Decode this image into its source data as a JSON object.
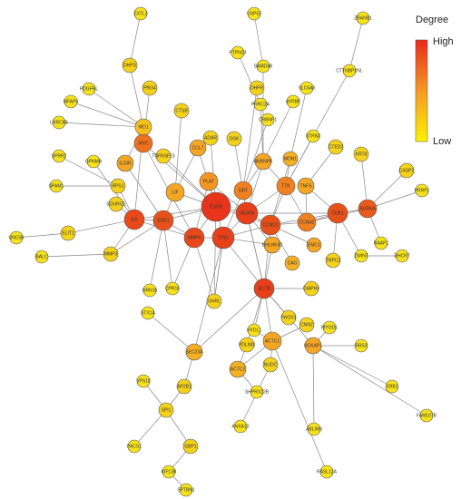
{
  "legend": {
    "title": "Degree",
    "high": "High",
    "low": "Low"
  },
  "nodes": [
    {
      "label": "EXTL3",
      "color": "#f7e21a"
    },
    {
      "label": "USP53",
      "color": "#f7e21a"
    },
    {
      "label": "ZRANB1",
      "color": "#f7e21a"
    },
    {
      "label": "PTPN23",
      "color": "#f7e21a"
    },
    {
      "label": "DHPS",
      "color": "#f5d21a"
    },
    {
      "label": "SAMD4B",
      "color": "#f7e21a"
    },
    {
      "label": "CTTNBP2NL",
      "color": "#f7e21a"
    },
    {
      "label": "PDGFRL",
      "color": "#f7e21a"
    },
    {
      "label": "PRG4",
      "color": "#f5d21a"
    },
    {
      "label": "MFAP4",
      "color": "#f7e21a"
    },
    {
      "label": "DHFR",
      "color": "#f5d21a"
    },
    {
      "label": "SLC6A6",
      "color": "#f7e21a"
    },
    {
      "label": "AYRBF",
      "color": "#f7e21a"
    },
    {
      "label": "PRRC2A",
      "color": "#f7e21a"
    },
    {
      "label": "LRRC8B",
      "color": "#f7e21a"
    },
    {
      "label": "CTSB",
      "color": "#f5d21a"
    },
    {
      "label": "WD1",
      "color": "#f5c01a"
    },
    {
      "label": "CRBNP1",
      "color": "#f7e21a"
    },
    {
      "label": "ADAR",
      "color": "#f5d21a"
    },
    {
      "label": "DGK",
      "color": "#f5d21a"
    },
    {
      "label": "STRN3",
      "color": "#f7e21a"
    },
    {
      "label": "CTED2",
      "color": "#f5d21a"
    },
    {
      "label": "KRT8",
      "color": "#f5d21a"
    },
    {
      "label": "SPRR2",
      "color": "#f7e21a"
    },
    {
      "label": "GPNMB",
      "color": "#f7e21a"
    },
    {
      "label": "IL33R",
      "color": "#f5a623"
    },
    {
      "label": "TNFRSF23",
      "color": "#f5d21a"
    },
    {
      "label": "CCL7",
      "color": "#f5a623"
    },
    {
      "label": "HNRNPK",
      "color": "#f5a623"
    },
    {
      "label": "MDN1",
      "color": "#f5b023"
    },
    {
      "label": "MYC",
      "color": "#ef7020"
    },
    {
      "label": "CASP2",
      "color": "#f5d21a"
    },
    {
      "label": "SPAM1",
      "color": "#f7e21a"
    },
    {
      "label": "RPS1",
      "color": "#f5d21a"
    },
    {
      "label": "LIF",
      "color": "#f5a623"
    },
    {
      "label": "PLAT",
      "color": "#f59623"
    },
    {
      "label": "GRT",
      "color": "#f08020"
    },
    {
      "label": "TTK",
      "color": "#f08020"
    },
    {
      "label": "TNFS",
      "color": "#f5a623"
    },
    {
      "label": "SOURCE",
      "color": "#f5d21a"
    },
    {
      "label": "EGFR",
      "color": "#e8341a"
    },
    {
      "label": "VEGFA",
      "color": "#e8401a"
    },
    {
      "label": "PRRP1",
      "color": "#f7e21a"
    },
    {
      "label": "UNC5B",
      "color": "#f7e21a"
    },
    {
      "label": "ELIT1",
      "color": "#f5d21a"
    },
    {
      "label": "IL6",
      "color": "#e8481a"
    },
    {
      "label": "ESR1",
      "color": "#e8501a"
    },
    {
      "label": "MMP9",
      "color": "#e8481a"
    },
    {
      "label": "TP53",
      "color": "#e8401a"
    },
    {
      "label": "CCND1",
      "color": "#e8501a"
    },
    {
      "label": "CCNA2",
      "color": "#f08020"
    },
    {
      "label": "CDK1",
      "color": "#e8501a"
    },
    {
      "label": "AURKA",
      "color": "#ea5a1a"
    },
    {
      "label": "BALC",
      "color": "#f7e21a"
    },
    {
      "label": "MMP3",
      "color": "#f5d21a"
    },
    {
      "label": "RAAP1",
      "color": "#f7e21a"
    },
    {
      "label": "DHCR7",
      "color": "#f7e21a"
    },
    {
      "label": "ZWINT",
      "color": "#f7e21a"
    },
    {
      "label": "EMC1",
      "color": "#f5a623"
    },
    {
      "label": "BHLHE40",
      "color": "#f5a623"
    },
    {
      "label": "CAG",
      "color": "#f5b023"
    },
    {
      "label": "TRPC2",
      "color": "#f5d21a"
    },
    {
      "label": "CPR16",
      "color": "#f7e21a"
    },
    {
      "label": "GHRL",
      "color": "#f5d21a"
    },
    {
      "label": "GRN16",
      "color": "#f7e21a"
    },
    {
      "label": "ACTB",
      "color": "#e8401a"
    },
    {
      "label": "HYDL1",
      "color": "#f7e21a"
    },
    {
      "label": "DIAPH3",
      "color": "#f5d21a"
    },
    {
      "label": "PHOX1",
      "color": "#f5d21a"
    },
    {
      "label": "CNN2",
      "color": "#f5d21a"
    },
    {
      "label": "MYOD1",
      "color": "#f7e21a"
    },
    {
      "label": "STX1A",
      "color": "#f7e21a"
    },
    {
      "label": "RBS3",
      "color": "#f7e21a"
    },
    {
      "label": "ACTC1",
      "color": "#f5a623"
    },
    {
      "label": "PDLIM3",
      "color": "#f5d21a"
    },
    {
      "label": "NCKAP1",
      "color": "#f5a623"
    },
    {
      "label": "SEC23A",
      "color": "#f5b023"
    },
    {
      "label": "ACTC2",
      "color": "#f5b023"
    },
    {
      "label": "NUDC",
      "color": "#f5d21a"
    },
    {
      "label": "VPS18",
      "color": "#f7e21a"
    },
    {
      "label": "AP2B1",
      "color": "#f5d21a"
    },
    {
      "label": "SHPRX22B",
      "color": "#f7e21a"
    },
    {
      "label": "XRB1",
      "color": "#f7e21a"
    },
    {
      "label": "SPI1",
      "color": "#f5d21a"
    },
    {
      "label": "ANXA10",
      "color": "#f7e21a"
    },
    {
      "label": "FAM107B",
      "color": "#f7e21a"
    },
    {
      "label": "ABLIM3",
      "color": "#f7e21a"
    },
    {
      "label": "GBP1",
      "color": "#f5d21a"
    },
    {
      "label": "PACS1",
      "color": "#f7e21a"
    },
    {
      "label": "KIF13B",
      "color": "#f7e21a"
    },
    {
      "label": "SPTBN1",
      "color": "#f7e21a"
    },
    {
      "label": "RASL12A",
      "color": "#f7e21a"
    }
  ]
}
